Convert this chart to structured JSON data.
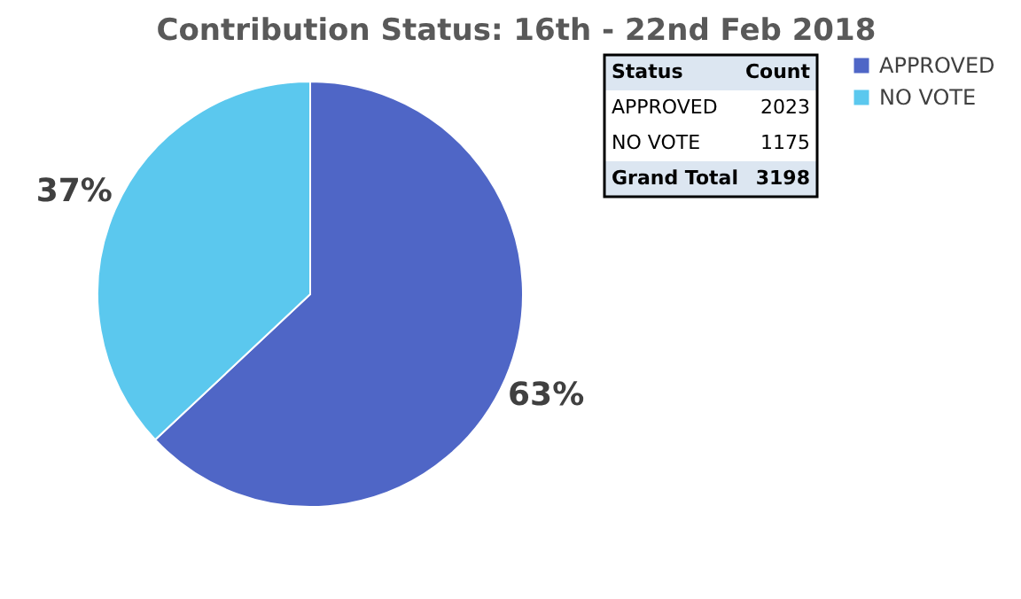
{
  "chart_data": [
    {
      "type": "pie",
      "title": "Contribution Status: 16th - 22nd Feb 2018",
      "categories": [
        "APPROVED",
        "NO VOTE"
      ],
      "values": [
        63,
        37
      ],
      "colors": [
        "#4f66c6",
        "#5bc8ee"
      ],
      "value_labels": [
        "63%",
        "37%"
      ],
      "legend": "right"
    },
    {
      "type": "other",
      "xlabel": "Status",
      "ylabel": "Count",
      "categories": [
        "APPROVED",
        "NO VOTE"
      ],
      "values": [
        2023,
        1175
      ],
      "annotations": [
        "Grand Total"
      ],
      "totals": [
        "3198"
      ],
      "data_labels": true
    }
  ]
}
